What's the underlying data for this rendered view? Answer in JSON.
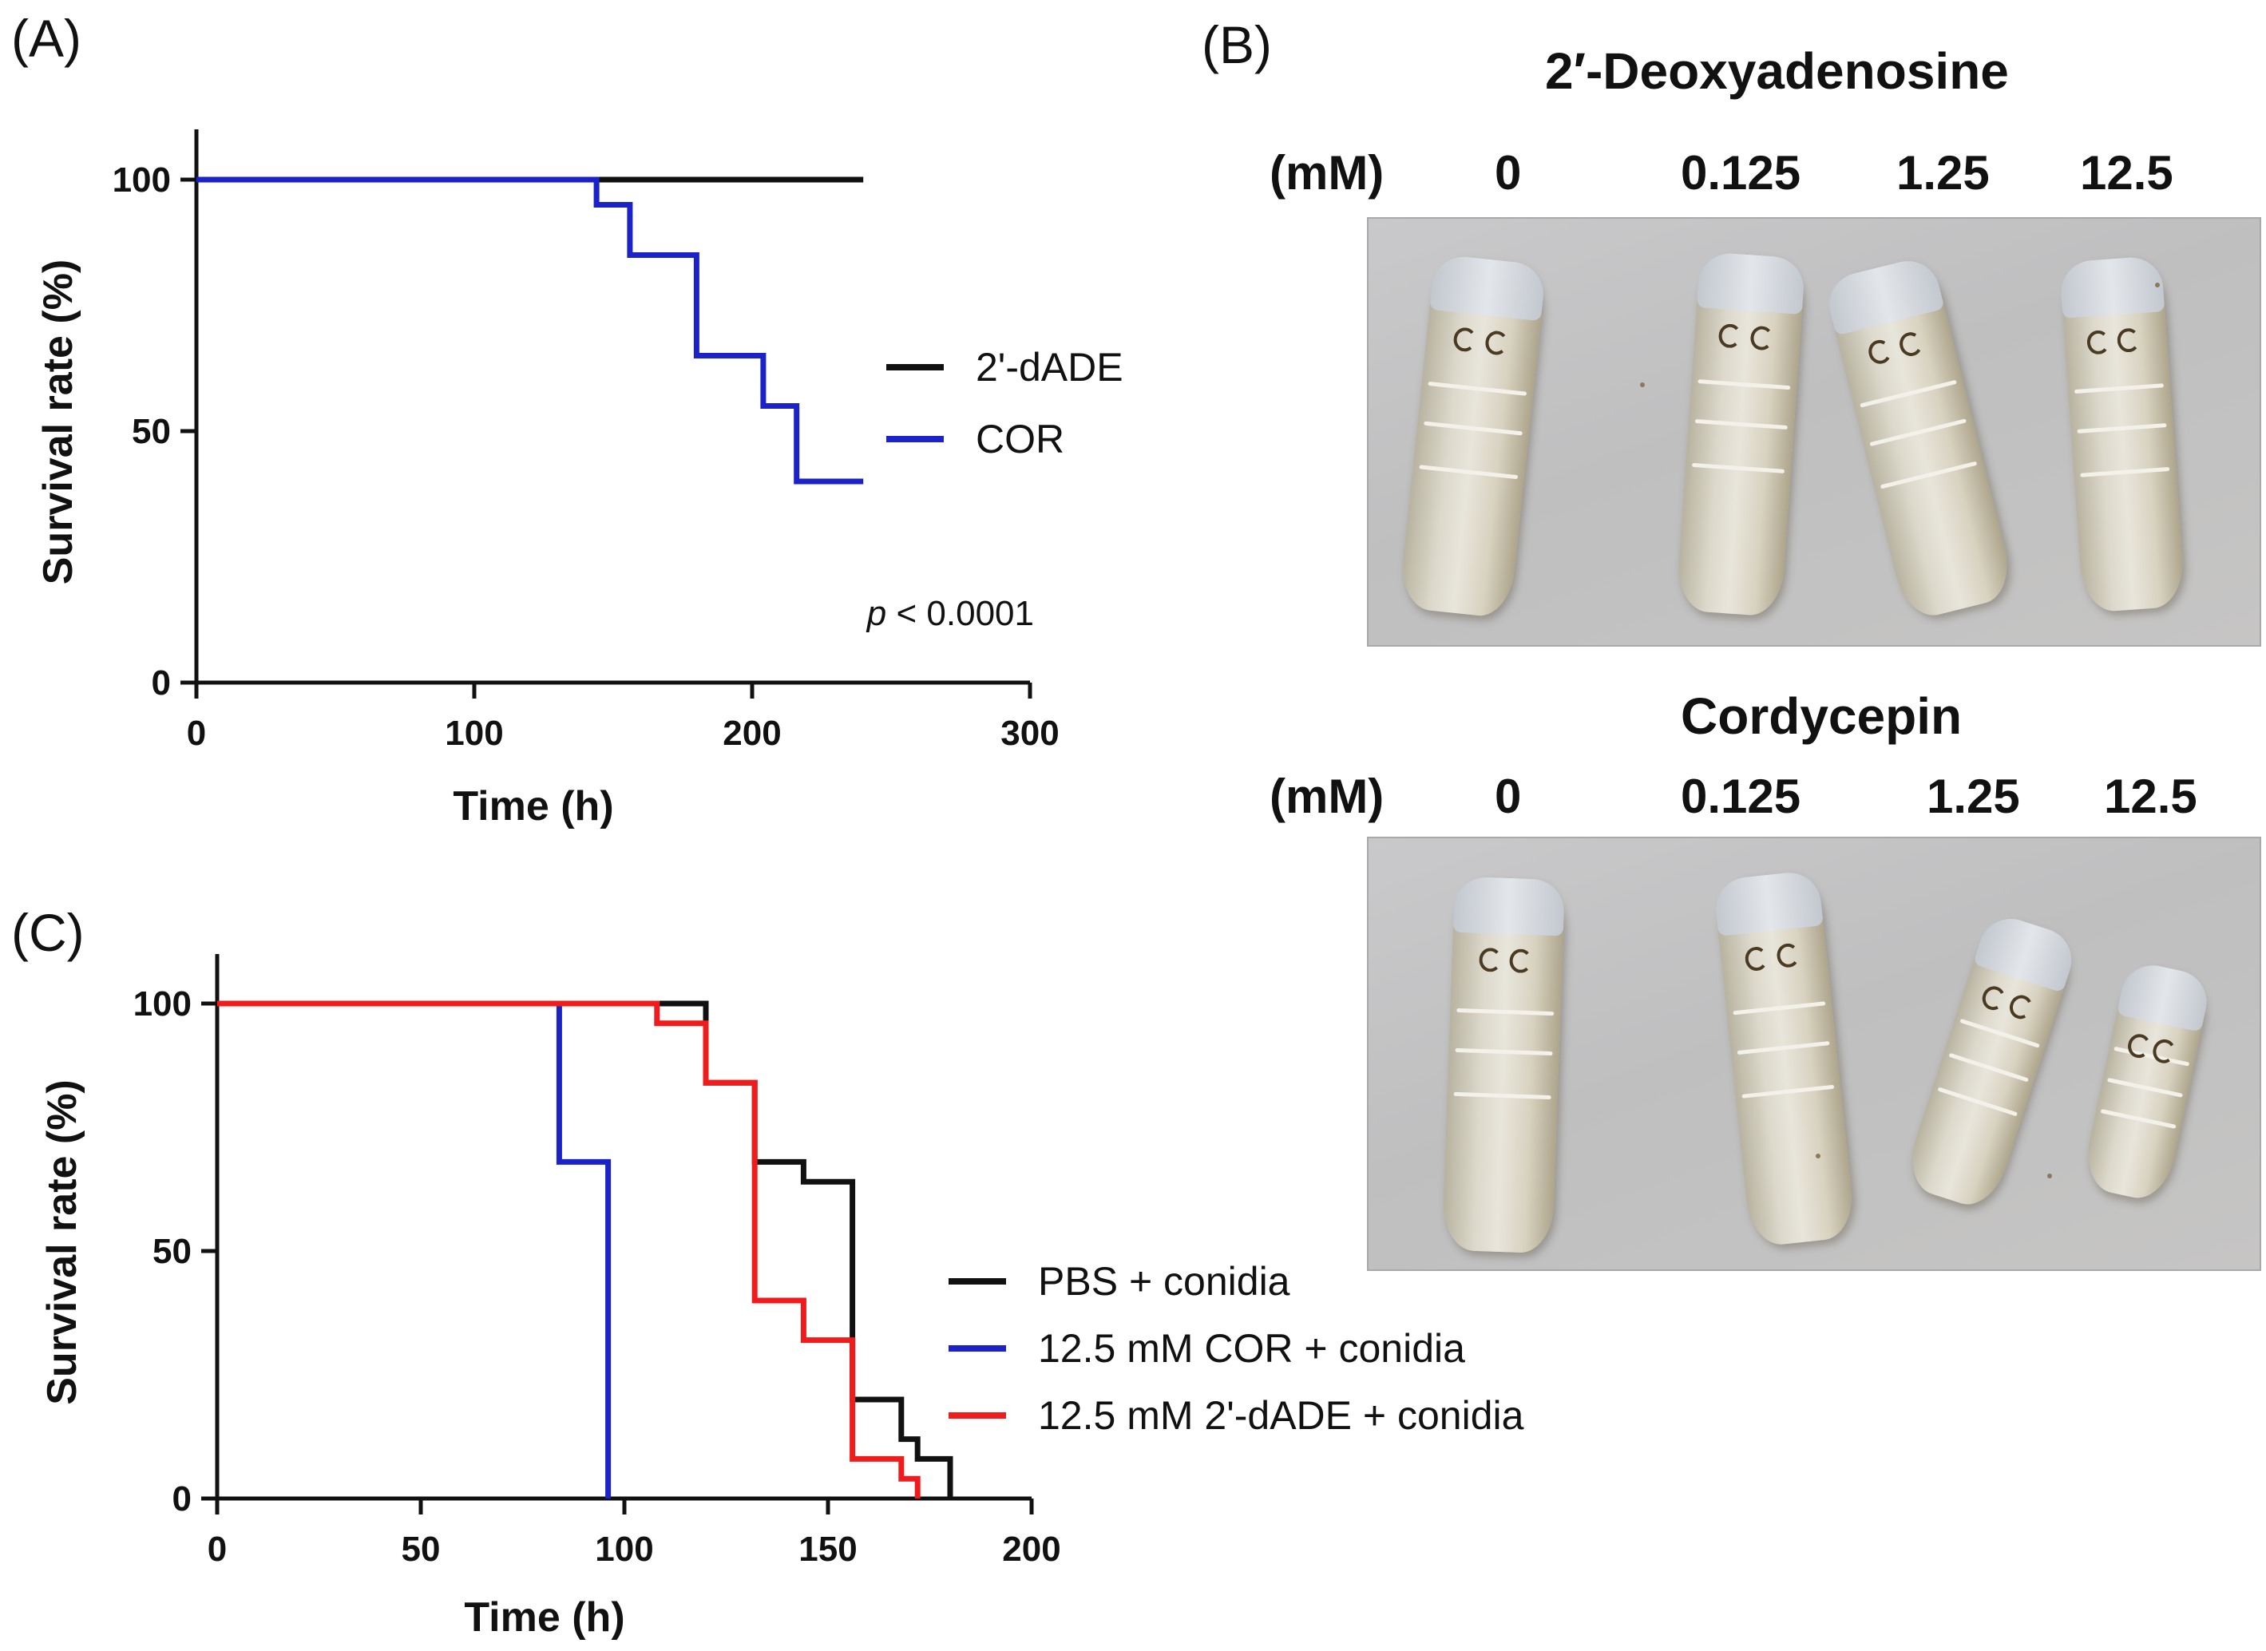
{
  "panels": {
    "A": "(A)",
    "B": "(B)",
    "C": "(C)"
  },
  "chart_data": [
    {
      "panel": "A",
      "type": "line",
      "step": true,
      "xlabel": "Time (h)",
      "ylabel": "Survival rate (%)",
      "xlim": [
        0,
        300
      ],
      "ylim": [
        0,
        110
      ],
      "xticks": [
        0,
        100,
        200,
        300
      ],
      "yticks": [
        0,
        50,
        100
      ],
      "series": [
        {
          "name": "2'-dADE",
          "color": "#111111",
          "points": [
            [
              0,
              100
            ],
            [
              240,
              100
            ]
          ]
        },
        {
          "name": "COR",
          "color": "#1a22c8",
          "points": [
            [
              0,
              100
            ],
            [
              144,
              100
            ],
            [
              144,
              95
            ],
            [
              156,
              95
            ],
            [
              156,
              85
            ],
            [
              180,
              85
            ],
            [
              180,
              65
            ],
            [
              204,
              65
            ],
            [
              204,
              55
            ],
            [
              216,
              55
            ],
            [
              216,
              40
            ],
            [
              240,
              40
            ]
          ]
        }
      ],
      "annotation": {
        "italic": "p",
        "rest": " < 0.0001"
      }
    },
    {
      "panel": "C",
      "type": "line",
      "step": true,
      "xlabel": "Time (h)",
      "ylabel": "Survival rate (%)",
      "xlim": [
        0,
        200
      ],
      "ylim": [
        0,
        110
      ],
      "xticks": [
        0,
        50,
        100,
        150,
        200
      ],
      "yticks": [
        0,
        50,
        100
      ],
      "series": [
        {
          "name": "PBS + conidia",
          "color": "#111111",
          "points": [
            [
              0,
              100
            ],
            [
              120,
              100
            ],
            [
              120,
              84
            ],
            [
              132,
              84
            ],
            [
              132,
              68
            ],
            [
              144,
              68
            ],
            [
              144,
              64
            ],
            [
              156,
              64
            ],
            [
              156,
              20
            ],
            [
              168,
              20
            ],
            [
              168,
              12
            ],
            [
              172,
              12
            ],
            [
              172,
              8
            ],
            [
              180,
              8
            ],
            [
              180,
              0
            ]
          ]
        },
        {
          "name": "12.5 mM COR + conidia",
          "color": "#1a22c8",
          "points": [
            [
              0,
              100
            ],
            [
              84,
              100
            ],
            [
              84,
              68
            ],
            [
              96,
              68
            ],
            [
              96,
              0
            ]
          ]
        },
        {
          "name": "12.5 mM 2'-dADE + conidia",
          "color": "#ee1c1c",
          "points": [
            [
              0,
              100
            ],
            [
              108,
              100
            ],
            [
              108,
              96
            ],
            [
              120,
              96
            ],
            [
              120,
              84
            ],
            [
              132,
              84
            ],
            [
              132,
              68
            ],
            [
              132,
              40
            ],
            [
              144,
              40
            ],
            [
              144,
              32
            ],
            [
              156,
              32
            ],
            [
              156,
              8
            ],
            [
              168,
              8
            ],
            [
              168,
              4
            ],
            [
              172,
              4
            ],
            [
              172,
              0
            ]
          ]
        }
      ]
    }
  ],
  "panel_b": {
    "top": {
      "title": "2′-Deoxyadenosine",
      "unit": "(mM)",
      "concentrations": [
        "0",
        "0.125",
        "1.25",
        "12.5"
      ]
    },
    "bottom": {
      "title": "Cordycepin",
      "unit": "(mM)",
      "concentrations": [
        "0",
        "0.125",
        "1.25",
        "12.5"
      ]
    },
    "photo_subject": "silkworm-larvae"
  }
}
